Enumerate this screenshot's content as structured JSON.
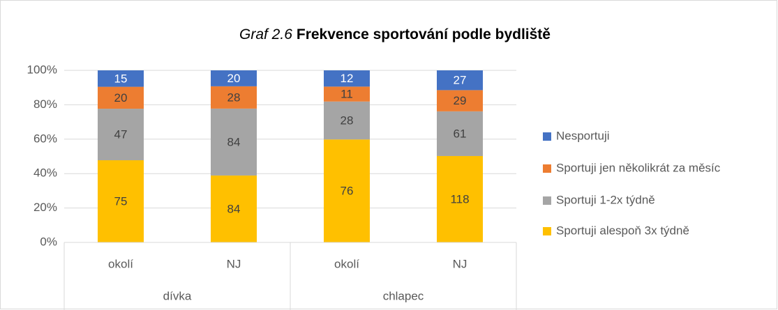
{
  "chart_data": {
    "type": "bar",
    "stacking": "percent",
    "title_prefix": "Graf 2.6",
    "title": "Frekvence sportování podle bydliště",
    "categories": [
      "okolí",
      "NJ",
      "okolí",
      "NJ"
    ],
    "groups": [
      "dívka",
      "chlapec"
    ],
    "series": [
      {
        "name": "Sportuji alespoň 3x týdně",
        "color": "#ffc000",
        "values": [
          75,
          84,
          76,
          118
        ]
      },
      {
        "name": "Sportuji 1-2x týdně",
        "color": "#a5a5a5",
        "values": [
          47,
          84,
          28,
          61
        ]
      },
      {
        "name": "Sportuji jen několikrát za měsíc",
        "color": "#ed7d31",
        "values": [
          20,
          28,
          11,
          29
        ]
      },
      {
        "name": "Nesportuji",
        "color": "#4472c4",
        "values": [
          15,
          20,
          12,
          27
        ]
      }
    ],
    "ylim": [
      0,
      100
    ],
    "yticks": [
      {
        "value": 0,
        "label": "0%"
      },
      {
        "value": 20,
        "label": "20%"
      },
      {
        "value": 40,
        "label": "40%"
      },
      {
        "value": 60,
        "label": "60%"
      },
      {
        "value": 80,
        "label": "80%"
      },
      {
        "value": 100,
        "label": "100%"
      }
    ],
    "grid": true,
    "legend": "right"
  }
}
